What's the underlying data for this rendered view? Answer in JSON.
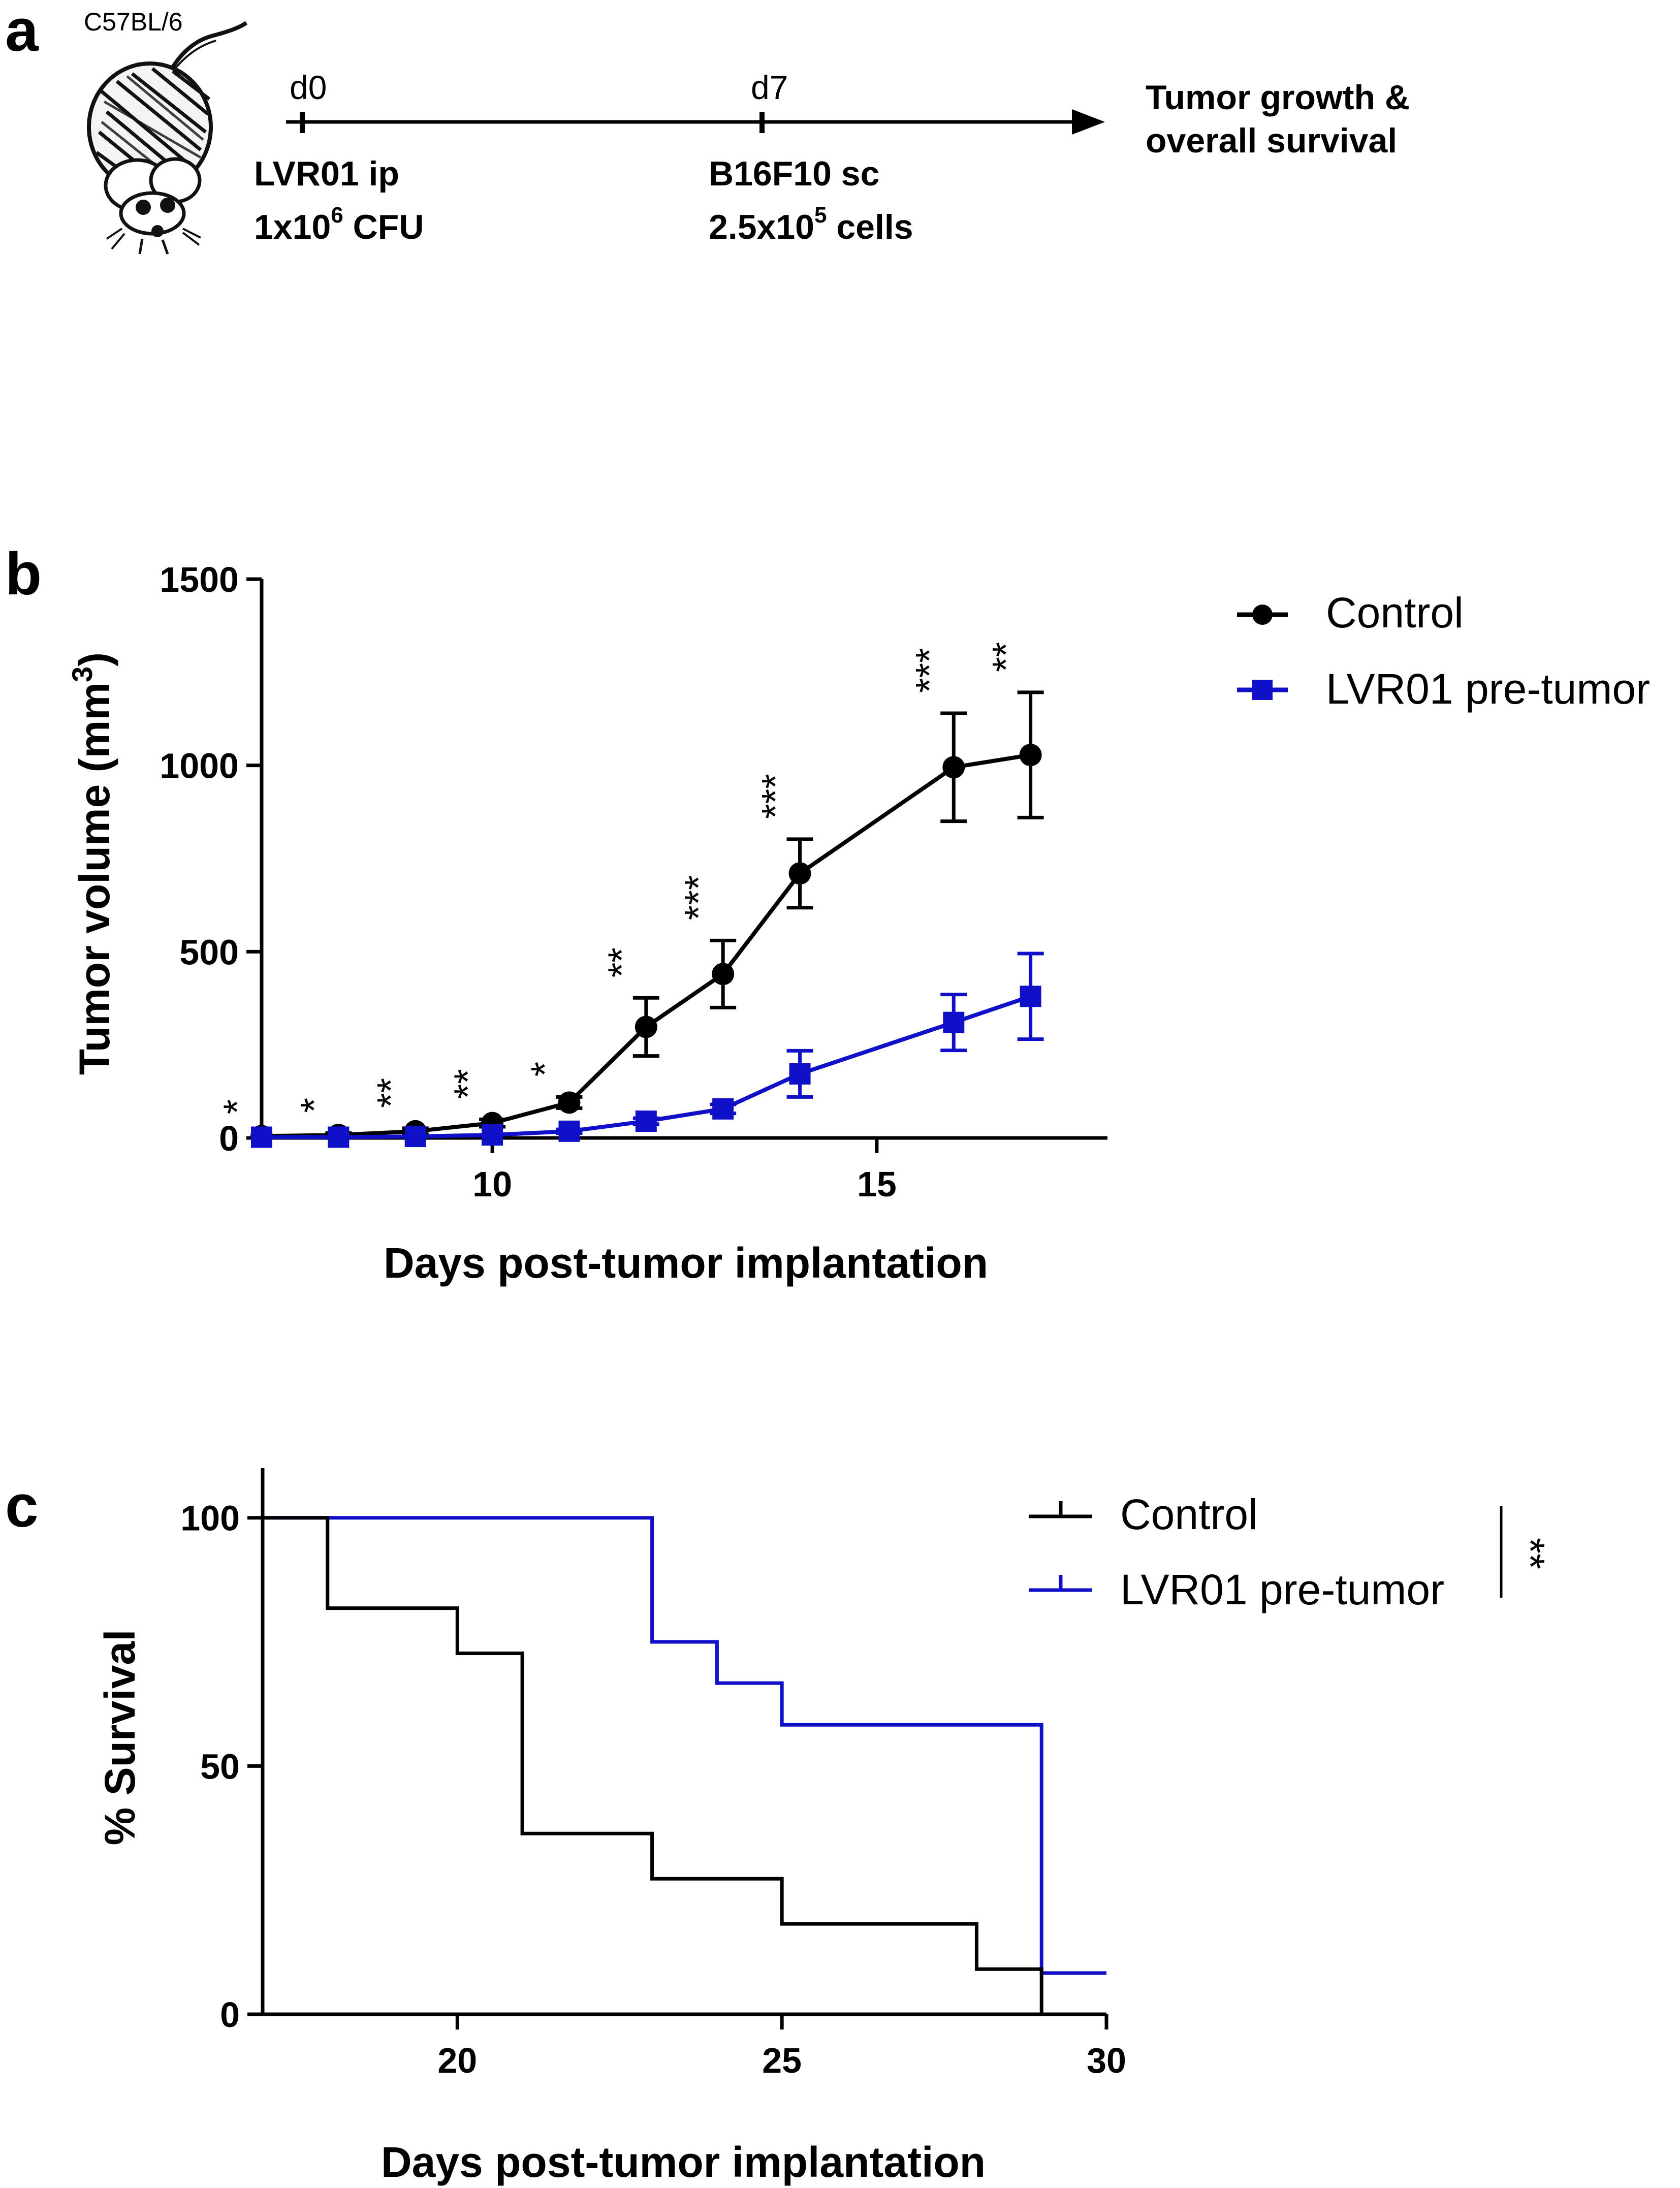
{
  "colors": {
    "control": "#000000",
    "treated": "#1010c8",
    "axis": "#000000"
  },
  "panel_a": {
    "label": "a",
    "strain": "C57BL/6",
    "mouse_icon": "mouse-icon",
    "d0": "d0",
    "d7": "d7",
    "step1_line1": "LVR01 ip",
    "step1_line2_base": "1x10",
    "step1_line2_sup": "6",
    "step1_line2_tail": " CFU",
    "step2_line1": "B16F10 sc",
    "step2_line2_base": "2.5x10",
    "step2_line2_sup": "5",
    "step2_line2_tail": " cells",
    "outcome_line1": "Tumor growth &",
    "outcome_line2": "overall survival"
  },
  "chart_data": [
    {
      "panel": "b",
      "type": "line",
      "xlabel": "Days post-tumor implantation",
      "ylabel_base": "Tumor volume (mm",
      "ylabel_sup": "3",
      "ylabel_tail": ")",
      "xlim": [
        7,
        18
      ],
      "ylim": [
        0,
        1500
      ],
      "xticks": [
        10,
        15
      ],
      "yticks": [
        0,
        500,
        1000,
        1500
      ],
      "x": [
        7,
        8,
        9,
        10,
        11,
        12,
        13,
        14,
        16,
        17
      ],
      "series": [
        {
          "name": "Control",
          "marker": "circle",
          "values": [
            5,
            8,
            18,
            40,
            95,
            298,
            440,
            710,
            995,
            1028
          ],
          "errors": [
            4,
            5,
            8,
            10,
            15,
            78,
            90,
            92,
            145,
            168
          ]
        },
        {
          "name": "LVR01 pre-tumor",
          "marker": "square",
          "values": [
            2,
            2,
            4,
            8,
            18,
            45,
            78,
            172,
            310,
            380
          ],
          "errors": [
            2,
            2,
            3,
            4,
            5,
            8,
            12,
            62,
            75,
            115
          ]
        }
      ],
      "significance": [
        {
          "x": 7,
          "label": "*"
        },
        {
          "x": 8,
          "label": "*"
        },
        {
          "x": 9,
          "label": "**"
        },
        {
          "x": 10,
          "label": "**"
        },
        {
          "x": 11,
          "label": "*"
        },
        {
          "x": 12,
          "label": "**"
        },
        {
          "x": 13,
          "label": "***"
        },
        {
          "x": 14,
          "label": "***"
        },
        {
          "x": 16,
          "label": "***"
        },
        {
          "x": 17,
          "label": "**"
        }
      ],
      "legend": "top-right"
    },
    {
      "panel": "c",
      "type": "line",
      "subtype": "kaplan-meier",
      "xlabel": "Days post-tumor implantation",
      "ylabel": "% Survival",
      "xlim": [
        17,
        30
      ],
      "ylim": [
        0,
        110
      ],
      "xticks": [
        20,
        25,
        30
      ],
      "yticks": [
        0,
        50,
        100
      ],
      "series": [
        {
          "name": "Control",
          "steps": [
            [
              17,
              100
            ],
            [
              18,
              81.8
            ],
            [
              20,
              72.7
            ],
            [
              21,
              36.4
            ],
            [
              23,
              27.3
            ],
            [
              25,
              18.2
            ],
            [
              28,
              9.1
            ],
            [
              29,
              0
            ]
          ]
        },
        {
          "name": "LVR01 pre-tumor",
          "steps": [
            [
              17,
              100
            ],
            [
              23,
              75
            ],
            [
              24,
              66.7
            ],
            [
              25,
              58.3
            ],
            [
              29,
              8.3
            ],
            [
              30,
              8.3
            ]
          ]
        }
      ],
      "significance_label": "**",
      "legend": "top-right"
    }
  ]
}
